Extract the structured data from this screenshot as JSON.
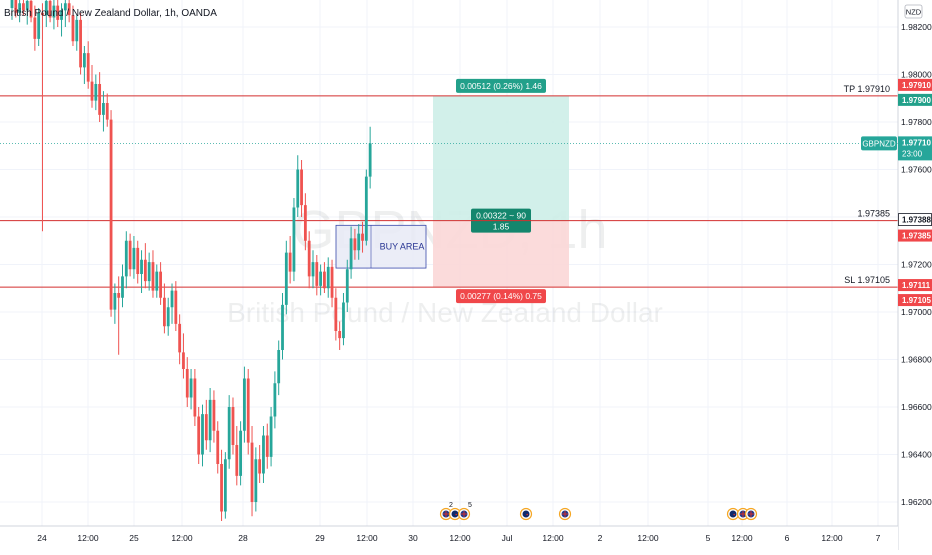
{
  "header": {
    "symbol_title": "British Pound / New Zealand Dollar, 1h, OANDA"
  },
  "watermark": {
    "symbol": "GBPNZD, 1h",
    "description": "British Pound / New Zealand Dollar"
  },
  "price_axis": {
    "currency": "NZD",
    "ticks": [
      "1.98200",
      "1.98000",
      "1.97800",
      "1.97600",
      "1.97200",
      "1.97000",
      "1.96800",
      "1.96600",
      "1.96400",
      "1.96200"
    ]
  },
  "time_axis": {
    "ticks": [
      "24",
      "12:00",
      "25",
      "12:00",
      "28",
      "29",
      "12:00",
      "30",
      "12:00",
      "Jul",
      "12:00",
      "2",
      "12:00",
      "5",
      "12:00",
      "6",
      "12:00",
      "7"
    ]
  },
  "levels": {
    "tp_label": "TP 1.97910",
    "entry_label": "1.97385",
    "sl_label": "SL 1.97105"
  },
  "price_tags": {
    "tp_upper": "1.97910",
    "tp_lower": "1.97900",
    "current_symbol": "GBPNZD",
    "current_price": "1.97710",
    "countdown": "23:00",
    "entry_upper": "1.97388",
    "entry_lower": "1.97385",
    "sl_upper": "1.97111",
    "sl_lower": "1.97105"
  },
  "position_tool": {
    "target_label": "0.00512 (0.26%) 1.46",
    "center_label_line1": "0.00322 ~ 90",
    "center_label_line2": "1.85",
    "stop_label": "0.00277 (0.14%) 0.75"
  },
  "annotation": {
    "buy_area_label": "BUY AREA"
  },
  "colors": {
    "up": "#26a69a",
    "down": "#ef5350",
    "level_line": "#d32f2f",
    "target_fill": "#cdeee8",
    "stop_fill": "#fbd7d7",
    "target_tag": "#22a08a",
    "stop_tag": "#f0474a",
    "buy_box_fill": "#e8eaf6",
    "buy_box_border": "#3949ab"
  },
  "events": {
    "icons": [
      "uk-flag-icon",
      "nz-flag-icon",
      "uk-flag-icon",
      "nz-flag-icon",
      "uk-flag-icon",
      "nz-flag-icon",
      "uk-flag-icon",
      "uk-flag-icon"
    ],
    "counts": [
      "2",
      "5"
    ]
  },
  "chart_data": {
    "type": "candlestick",
    "title": "British Pound / New Zealand Dollar, 1h, OANDA",
    "price_range": [
      1.961,
      1.9835
    ],
    "take_profit": 1.9791,
    "entry": 1.97385,
    "stop_loss": 1.97105,
    "current_price": 1.9771,
    "buy_area": [
      1.97185,
      1.97365
    ],
    "candles": [
      {
        "o": 1.9828,
        "h": 1.9834,
        "l": 1.9823,
        "c": 1.9832
      },
      {
        "o": 1.9832,
        "h": 1.9836,
        "l": 1.9824,
        "c": 1.9826
      },
      {
        "o": 1.9826,
        "h": 1.9833,
        "l": 1.9822,
        "c": 1.983
      },
      {
        "o": 1.983,
        "h": 1.9835,
        "l": 1.9825,
        "c": 1.9827
      },
      {
        "o": 1.9827,
        "h": 1.9834,
        "l": 1.9821,
        "c": 1.9831
      },
      {
        "o": 1.9831,
        "h": 1.9836,
        "l": 1.9822,
        "c": 1.9824
      },
      {
        "o": 1.9824,
        "h": 1.9829,
        "l": 1.981,
        "c": 1.9815
      },
      {
        "o": 1.9815,
        "h": 1.9828,
        "l": 1.9812,
        "c": 1.9826
      },
      {
        "o": 1.9826,
        "h": 1.983,
        "l": 1.9734,
        "c": 1.9825
      },
      {
        "o": 1.9825,
        "h": 1.9833,
        "l": 1.982,
        "c": 1.9831
      },
      {
        "o": 1.9831,
        "h": 1.9836,
        "l": 1.9822,
        "c": 1.9824
      },
      {
        "o": 1.9824,
        "h": 1.9832,
        "l": 1.9819,
        "c": 1.9829
      },
      {
        "o": 1.9829,
        "h": 1.9834,
        "l": 1.982,
        "c": 1.9823
      },
      {
        "o": 1.9823,
        "h": 1.983,
        "l": 1.9816,
        "c": 1.9827
      },
      {
        "o": 1.9827,
        "h": 1.9833,
        "l": 1.982,
        "c": 1.983
      },
      {
        "o": 1.983,
        "h": 1.9835,
        "l": 1.9822,
        "c": 1.9825
      },
      {
        "o": 1.9825,
        "h": 1.9829,
        "l": 1.9812,
        "c": 1.9814
      },
      {
        "o": 1.9814,
        "h": 1.9825,
        "l": 1.981,
        "c": 1.9823
      },
      {
        "o": 1.9823,
        "h": 1.9826,
        "l": 1.98,
        "c": 1.9803
      },
      {
        "o": 1.9803,
        "h": 1.9812,
        "l": 1.9796,
        "c": 1.9809
      },
      {
        "o": 1.9809,
        "h": 1.9814,
        "l": 1.9794,
        "c": 1.9797
      },
      {
        "o": 1.9797,
        "h": 1.9804,
        "l": 1.9786,
        "c": 1.9789
      },
      {
        "o": 1.9789,
        "h": 1.98,
        "l": 1.9785,
        "c": 1.9796
      },
      {
        "o": 1.9796,
        "h": 1.9801,
        "l": 1.978,
        "c": 1.9783
      },
      {
        "o": 1.9783,
        "h": 1.9793,
        "l": 1.9776,
        "c": 1.9788
      },
      {
        "o": 1.9788,
        "h": 1.9792,
        "l": 1.9778,
        "c": 1.9781
      },
      {
        "o": 1.9781,
        "h": 1.9785,
        "l": 1.9698,
        "c": 1.9701
      },
      {
        "o": 1.9701,
        "h": 1.9712,
        "l": 1.9695,
        "c": 1.9708
      },
      {
        "o": 1.9708,
        "h": 1.9715,
        "l": 1.9682,
        "c": 1.9706
      },
      {
        "o": 1.9706,
        "h": 1.972,
        "l": 1.9702,
        "c": 1.9715
      },
      {
        "o": 1.9715,
        "h": 1.9734,
        "l": 1.971,
        "c": 1.973
      },
      {
        "o": 1.973,
        "h": 1.9733,
        "l": 1.9715,
        "c": 1.9718
      },
      {
        "o": 1.9718,
        "h": 1.9732,
        "l": 1.9714,
        "c": 1.9727
      },
      {
        "o": 1.9727,
        "h": 1.973,
        "l": 1.9712,
        "c": 1.9716
      },
      {
        "o": 1.9716,
        "h": 1.9726,
        "l": 1.9708,
        "c": 1.9722
      },
      {
        "o": 1.9722,
        "h": 1.9729,
        "l": 1.971,
        "c": 1.9713
      },
      {
        "o": 1.9713,
        "h": 1.9725,
        "l": 1.9709,
        "c": 1.9721
      },
      {
        "o": 1.9721,
        "h": 1.9726,
        "l": 1.9706,
        "c": 1.9709
      },
      {
        "o": 1.9709,
        "h": 1.972,
        "l": 1.9706,
        "c": 1.9717
      },
      {
        "o": 1.9717,
        "h": 1.9721,
        "l": 1.9703,
        "c": 1.9706
      },
      {
        "o": 1.9706,
        "h": 1.9712,
        "l": 1.9691,
        "c": 1.9694
      },
      {
        "o": 1.9694,
        "h": 1.9706,
        "l": 1.969,
        "c": 1.9702
      },
      {
        "o": 1.9702,
        "h": 1.9712,
        "l": 1.9695,
        "c": 1.9709
      },
      {
        "o": 1.9709,
        "h": 1.9713,
        "l": 1.9692,
        "c": 1.9695
      },
      {
        "o": 1.9695,
        "h": 1.9699,
        "l": 1.9678,
        "c": 1.9683
      },
      {
        "o": 1.9683,
        "h": 1.9691,
        "l": 1.9672,
        "c": 1.9676
      },
      {
        "o": 1.9676,
        "h": 1.9681,
        "l": 1.966,
        "c": 1.9664
      },
      {
        "o": 1.9664,
        "h": 1.9676,
        "l": 1.9659,
        "c": 1.9672
      },
      {
        "o": 1.9672,
        "h": 1.9676,
        "l": 1.9652,
        "c": 1.9656
      },
      {
        "o": 1.9656,
        "h": 1.966,
        "l": 1.9636,
        "c": 1.964
      },
      {
        "o": 1.964,
        "h": 1.9661,
        "l": 1.9635,
        "c": 1.9657
      },
      {
        "o": 1.9657,
        "h": 1.9663,
        "l": 1.9642,
        "c": 1.9646
      },
      {
        "o": 1.9646,
        "h": 1.9668,
        "l": 1.9641,
        "c": 1.9663
      },
      {
        "o": 1.9663,
        "h": 1.9667,
        "l": 1.9645,
        "c": 1.965
      },
      {
        "o": 1.965,
        "h": 1.9654,
        "l": 1.9632,
        "c": 1.9636
      },
      {
        "o": 1.9636,
        "h": 1.9642,
        "l": 1.9612,
        "c": 1.9616
      },
      {
        "o": 1.9616,
        "h": 1.9641,
        "l": 1.9613,
        "c": 1.9638
      },
      {
        "o": 1.9638,
        "h": 1.9665,
        "l": 1.9634,
        "c": 1.966
      },
      {
        "o": 1.966,
        "h": 1.9664,
        "l": 1.964,
        "c": 1.9644
      },
      {
        "o": 1.9644,
        "h": 1.9652,
        "l": 1.9627,
        "c": 1.9631
      },
      {
        "o": 1.9631,
        "h": 1.9654,
        "l": 1.9627,
        "c": 1.965
      },
      {
        "o": 1.965,
        "h": 1.9677,
        "l": 1.9645,
        "c": 1.9672
      },
      {
        "o": 1.9672,
        "h": 1.9676,
        "l": 1.964,
        "c": 1.9645
      },
      {
        "o": 1.9645,
        "h": 1.9652,
        "l": 1.9614,
        "c": 1.962
      },
      {
        "o": 1.962,
        "h": 1.9643,
        "l": 1.9616,
        "c": 1.9638
      },
      {
        "o": 1.9638,
        "h": 1.9644,
        "l": 1.9628,
        "c": 1.9632
      },
      {
        "o": 1.9632,
        "h": 1.9652,
        "l": 1.9628,
        "c": 1.9648
      },
      {
        "o": 1.9648,
        "h": 1.9653,
        "l": 1.9634,
        "c": 1.9639
      },
      {
        "o": 1.9639,
        "h": 1.966,
        "l": 1.9635,
        "c": 1.9656
      },
      {
        "o": 1.9656,
        "h": 1.9675,
        "l": 1.9651,
        "c": 1.967
      },
      {
        "o": 1.967,
        "h": 1.9688,
        "l": 1.9665,
        "c": 1.9684
      },
      {
        "o": 1.9684,
        "h": 1.9708,
        "l": 1.968,
        "c": 1.9703
      },
      {
        "o": 1.9703,
        "h": 1.973,
        "l": 1.9699,
        "c": 1.9725
      },
      {
        "o": 1.9725,
        "h": 1.9732,
        "l": 1.9712,
        "c": 1.9717
      },
      {
        "o": 1.9717,
        "h": 1.9748,
        "l": 1.9713,
        "c": 1.9744
      },
      {
        "o": 1.9744,
        "h": 1.9766,
        "l": 1.974,
        "c": 1.976
      },
      {
        "o": 1.976,
        "h": 1.9764,
        "l": 1.974,
        "c": 1.9745
      },
      {
        "o": 1.9745,
        "h": 1.975,
        "l": 1.9726,
        "c": 1.973
      },
      {
        "o": 1.973,
        "h": 1.9734,
        "l": 1.971,
        "c": 1.9715
      },
      {
        "o": 1.9715,
        "h": 1.9726,
        "l": 1.971,
        "c": 1.9721
      },
      {
        "o": 1.9721,
        "h": 1.9724,
        "l": 1.9707,
        "c": 1.9711
      },
      {
        "o": 1.9711,
        "h": 1.972,
        "l": 1.9707,
        "c": 1.9717
      },
      {
        "o": 1.9717,
        "h": 1.9721,
        "l": 1.9708,
        "c": 1.971
      },
      {
        "o": 1.971,
        "h": 1.9723,
        "l": 1.9706,
        "c": 1.9719
      },
      {
        "o": 1.9719,
        "h": 1.9722,
        "l": 1.9702,
        "c": 1.9706
      },
      {
        "o": 1.9706,
        "h": 1.971,
        "l": 1.9688,
        "c": 1.9692
      },
      {
        "o": 1.9692,
        "h": 1.9696,
        "l": 1.9684,
        "c": 1.9689
      },
      {
        "o": 1.9689,
        "h": 1.9708,
        "l": 1.9686,
        "c": 1.9704
      },
      {
        "o": 1.9704,
        "h": 1.9722,
        "l": 1.97,
        "c": 1.9718
      },
      {
        "o": 1.9718,
        "h": 1.9736,
        "l": 1.9714,
        "c": 1.9731
      },
      {
        "o": 1.9731,
        "h": 1.9735,
        "l": 1.9722,
        "c": 1.9726
      },
      {
        "o": 1.9726,
        "h": 1.9737,
        "l": 1.9722,
        "c": 1.9733
      },
      {
        "o": 1.9733,
        "h": 1.9738,
        "l": 1.9725,
        "c": 1.973
      },
      {
        "o": 1.973,
        "h": 1.976,
        "l": 1.9728,
        "c": 1.9757
      },
      {
        "o": 1.9757,
        "h": 1.9778,
        "l": 1.9752,
        "c": 1.9771
      }
    ]
  }
}
